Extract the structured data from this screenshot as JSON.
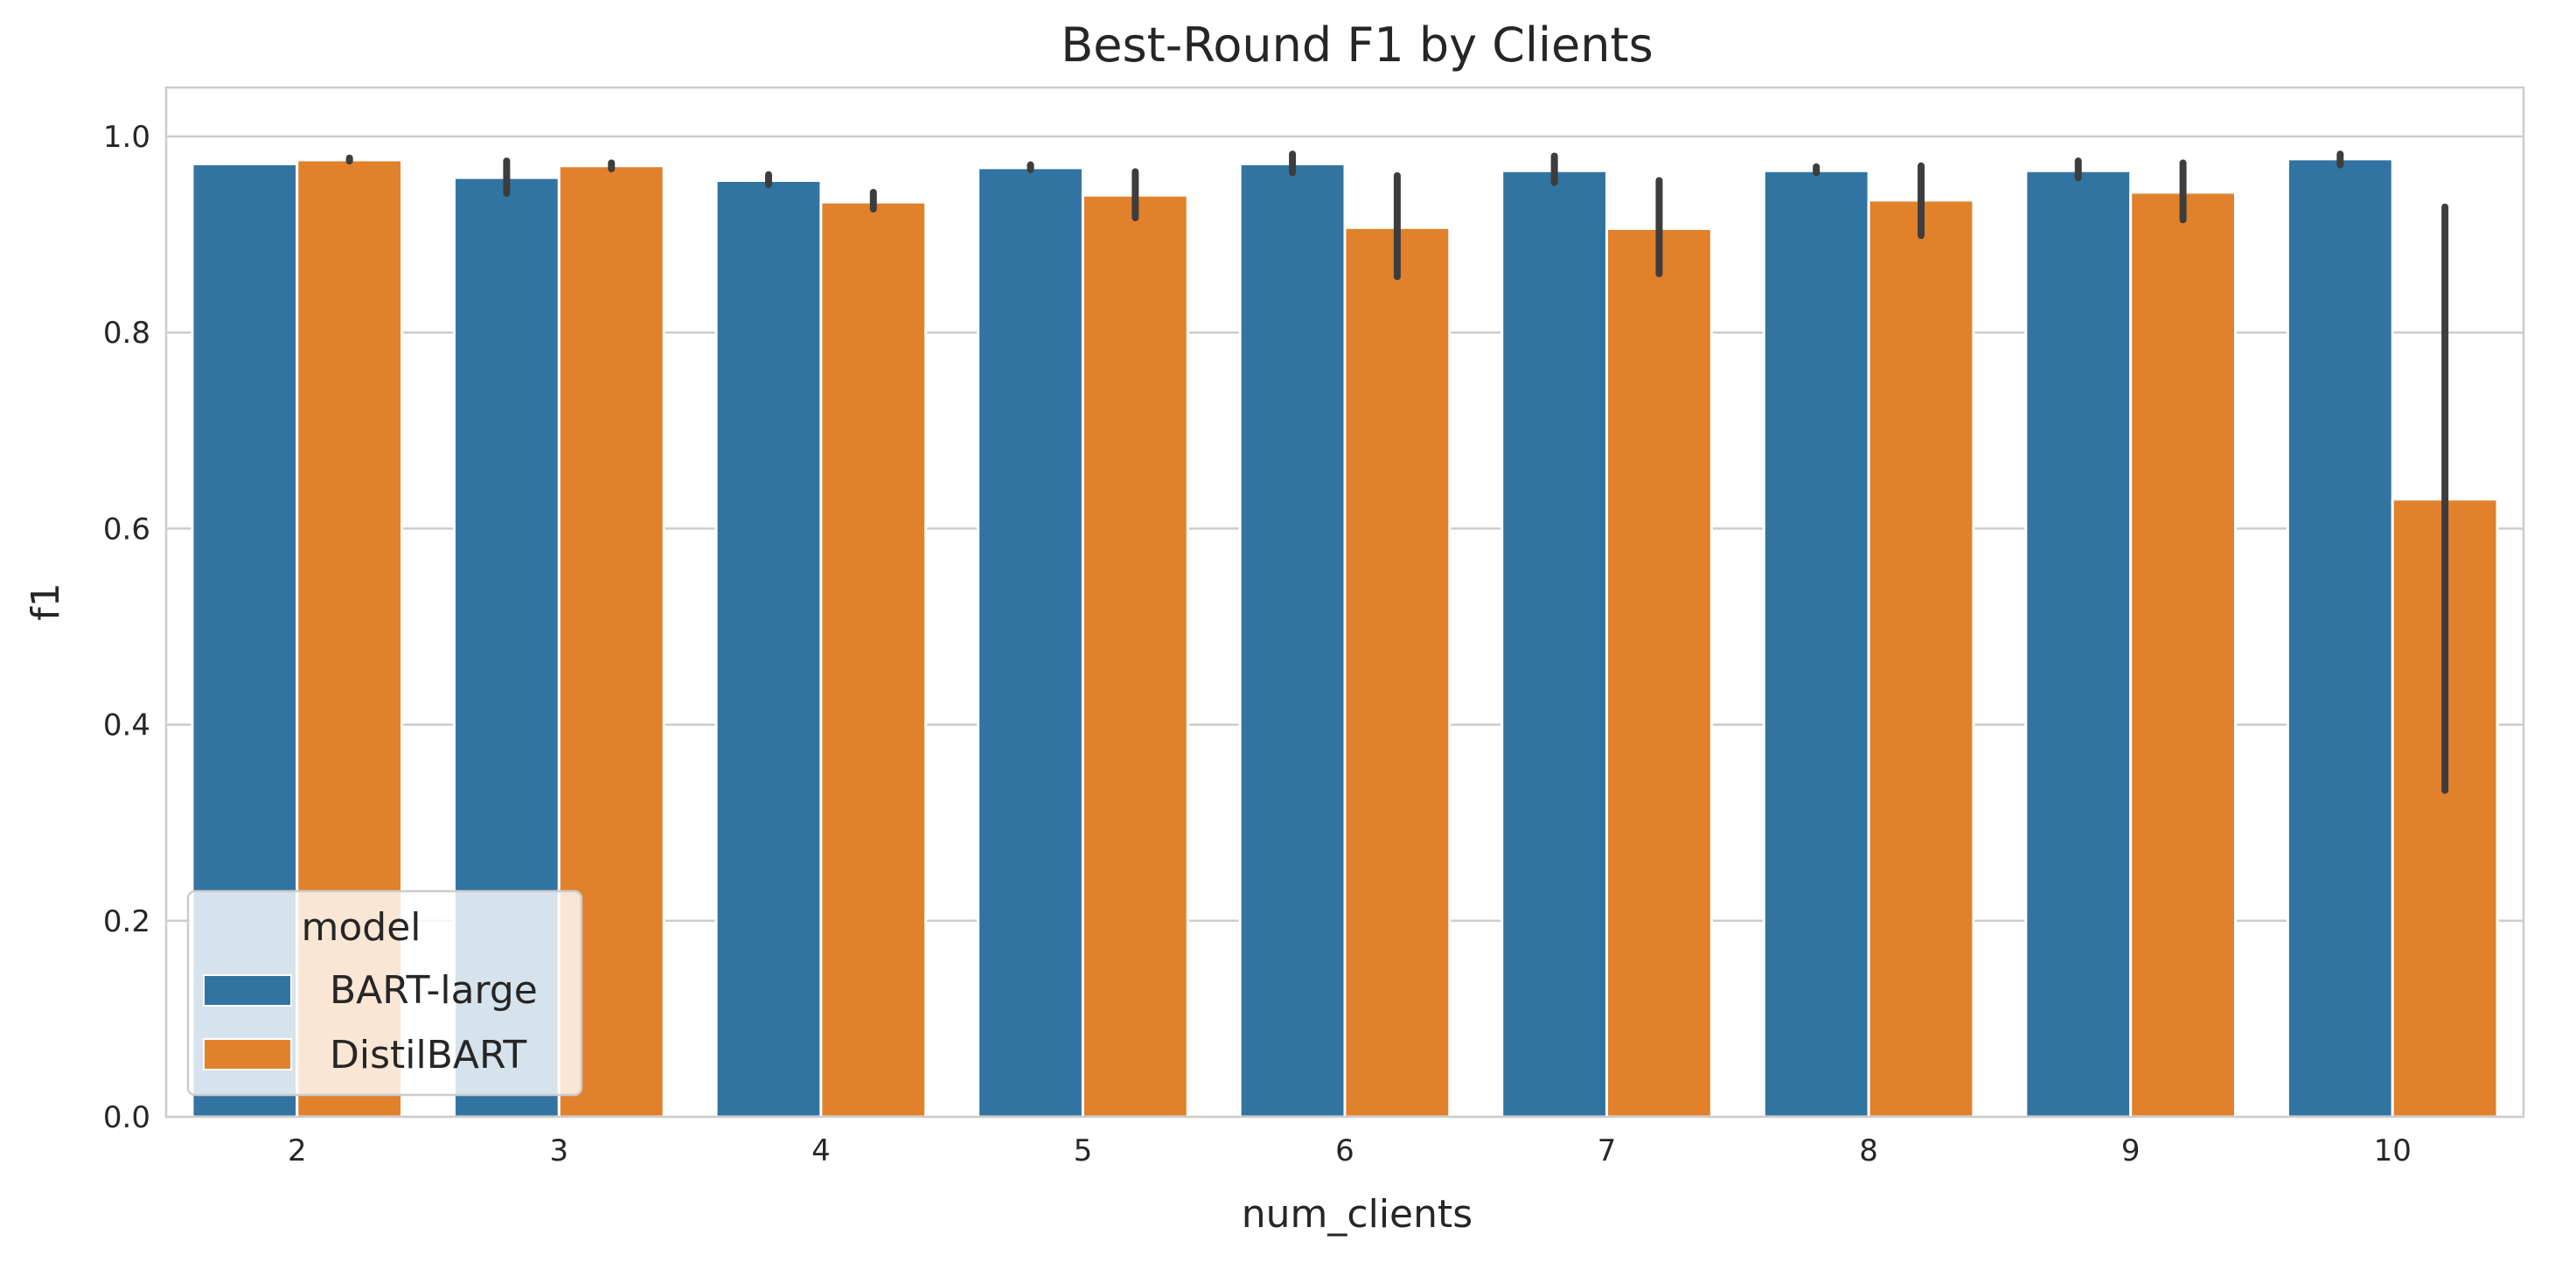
{
  "chart_data": {
    "type": "bar",
    "title": "Best-Round F1 by Clients",
    "xlabel": "num_clients",
    "ylabel": "f1",
    "categories": [
      "2",
      "3",
      "4",
      "5",
      "6",
      "7",
      "8",
      "9",
      "10"
    ],
    "ylim": [
      0,
      1.05
    ],
    "yticks": [
      "0.0",
      "0.2",
      "0.4",
      "0.6",
      "0.8",
      "1.0"
    ],
    "grid": true,
    "legend": {
      "title": "model",
      "placement": "lower-left"
    },
    "series": [
      {
        "name": "BART-large",
        "color": "#3274a1",
        "values": [
          0.972,
          0.958,
          0.955,
          0.968,
          0.972,
          0.965,
          0.965,
          0.965,
          0.977
        ],
        "error_low": [
          0.972,
          0.942,
          0.951,
          0.966,
          0.963,
          0.953,
          0.963,
          0.958,
          0.971
        ],
        "error_high": [
          0.972,
          0.975,
          0.961,
          0.971,
          0.982,
          0.98,
          0.969,
          0.975,
          0.982
        ]
      },
      {
        "name": "DistilBART",
        "color": "#e1812c",
        "values": [
          0.976,
          0.97,
          0.933,
          0.94,
          0.907,
          0.906,
          0.935,
          0.943,
          0.63
        ],
        "error_low": [
          0.975,
          0.967,
          0.926,
          0.917,
          0.857,
          0.86,
          0.899,
          0.915,
          0.333
        ],
        "error_high": [
          0.978,
          0.973,
          0.943,
          0.964,
          0.96,
          0.955,
          0.97,
          0.973,
          0.928
        ]
      }
    ]
  }
}
